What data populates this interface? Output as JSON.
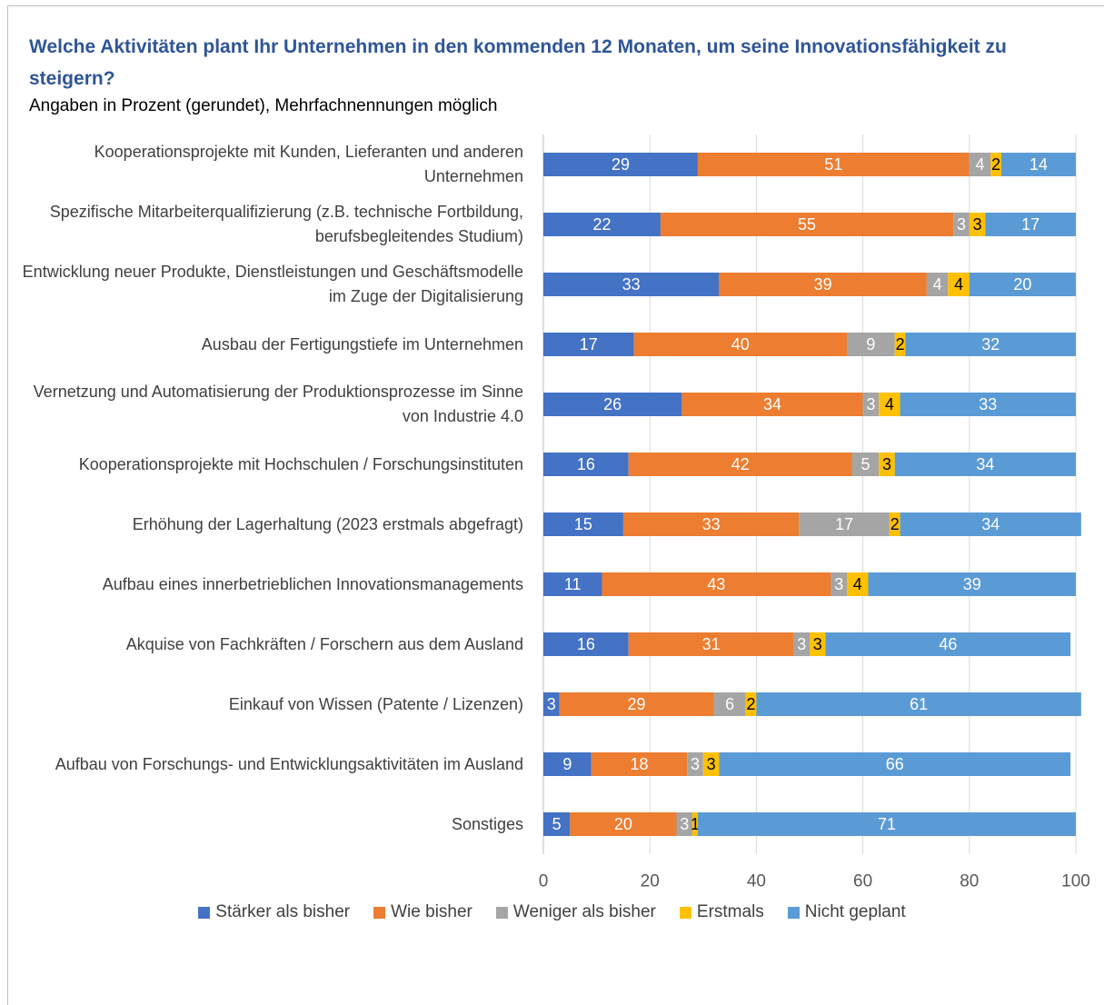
{
  "chart_data": {
    "type": "stacked_barh",
    "title": "Welche Aktivitäten plant Ihr Unternehmen in den kommenden 12 Monaten, um seine Innovationsfähigkeit zu steigern?",
    "subtitle": "Angaben in Prozent (gerundet), Mehrfachnennungen möglich",
    "categories": [
      "Kooperationsprojekte mit Kunden, Lieferanten und anderen Unternehmen",
      "Spezifische Mitarbeiterqualifizierung (z.B. technische Fortbildung, berufsbegleitendes Studium)",
      "Entwicklung neuer Produkte, Dienstleistungen und Geschäftsmodelle im Zuge der Digitalisierung",
      "Ausbau der Fertigungstiefe im Unternehmen",
      "Vernetzung und Automatisierung der Produktionsprozesse im Sinne von Industrie 4.0",
      "Kooperationsprojekte mit Hochschulen / Forschungsinstituten",
      "Erhöhung der Lagerhaltung  (2023 erstmals abgefragt)",
      "Aufbau eines innerbetrieblichen Innovationsmanagements",
      "Akquise von Fachkräften / Forschern aus dem Ausland",
      "Einkauf von Wissen (Patente / Lizenzen)",
      "Aufbau von Forschungs- und Entwicklungsaktivitäten im Ausland",
      "Sonstiges"
    ],
    "series": [
      {
        "name": "Stärker als bisher",
        "color": "#4472c4",
        "label_color": "#ffffff",
        "values": [
          29,
          22,
          33,
          17,
          26,
          16,
          15,
          11,
          16,
          3,
          9,
          5
        ]
      },
      {
        "name": "Wie bisher",
        "color": "#ed7d31",
        "label_color": "#ffffff",
        "values": [
          51,
          55,
          39,
          40,
          34,
          42,
          33,
          43,
          31,
          29,
          18,
          20
        ]
      },
      {
        "name": "Weniger als bisher",
        "color": "#a5a5a5",
        "label_color": "#ffffff",
        "values": [
          4,
          3,
          4,
          9,
          3,
          5,
          17,
          3,
          3,
          6,
          3,
          3
        ]
      },
      {
        "name": "Erstmals",
        "color": "#ffc000",
        "label_color": "#000000",
        "values": [
          2,
          3,
          4,
          2,
          4,
          3,
          2,
          4,
          3,
          2,
          3,
          1
        ]
      },
      {
        "name": "Nicht geplant",
        "color": "#5b9bd5",
        "label_color": "#ffffff",
        "values": [
          14,
          17,
          20,
          32,
          33,
          34,
          34,
          39,
          46,
          61,
          66,
          71
        ]
      }
    ],
    "xlim": [
      0,
      100
    ],
    "xticks": [
      0,
      20,
      40,
      60,
      80,
      100
    ],
    "grid": true,
    "legend": "bottom"
  }
}
